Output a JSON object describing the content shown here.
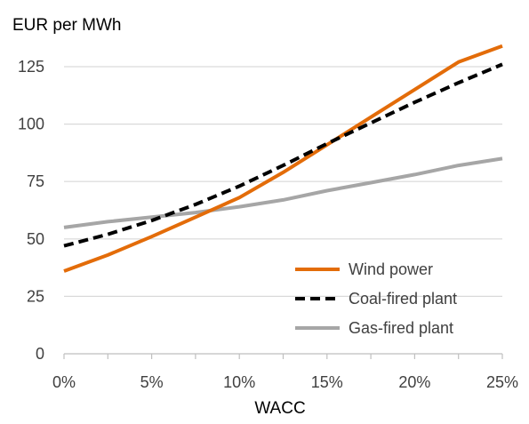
{
  "chart_data": {
    "type": "line",
    "ylabel": "EUR per MWh",
    "xlabel": "WACC",
    "x": [
      0,
      5,
      10,
      15,
      20,
      25
    ],
    "x_tick_labels": [
      "0%",
      "5%",
      "10%",
      "15%",
      "20%",
      "25%"
    ],
    "y_ticks": [
      0,
      25,
      50,
      75,
      100,
      125
    ],
    "ylim": [
      0,
      135
    ],
    "xlim": [
      0,
      25
    ],
    "grid": "horizontal",
    "legend_position": "bottom-right",
    "series": [
      {
        "name": "Wind power",
        "color": "#E36C09",
        "dash": "solid",
        "x": [
          0,
          2.5,
          5,
          7.5,
          10,
          12.5,
          15,
          17.5,
          20,
          22.5,
          25
        ],
        "y": [
          36,
          43,
          51,
          59.5,
          68,
          79,
          91,
          103,
          115,
          127,
          134
        ]
      },
      {
        "name": "Coal-fired plant",
        "color": "#000000",
        "dash": "dashed",
        "x": [
          0,
          2.5,
          5,
          7.5,
          10,
          12.5,
          15,
          17.5,
          20,
          22.5,
          25
        ],
        "y": [
          47,
          52,
          58,
          65,
          73,
          82,
          91.5,
          100.5,
          109.5,
          118,
          126
        ]
      },
      {
        "name": "Gas-fired plant",
        "color": "#A6A6A6",
        "dash": "solid",
        "x": [
          0,
          2.5,
          5,
          7.5,
          10,
          12.5,
          15,
          17.5,
          20,
          22.5,
          25
        ],
        "y": [
          55,
          57.5,
          59.5,
          61.5,
          64,
          67,
          71,
          74.5,
          78,
          82,
          85
        ]
      }
    ]
  }
}
